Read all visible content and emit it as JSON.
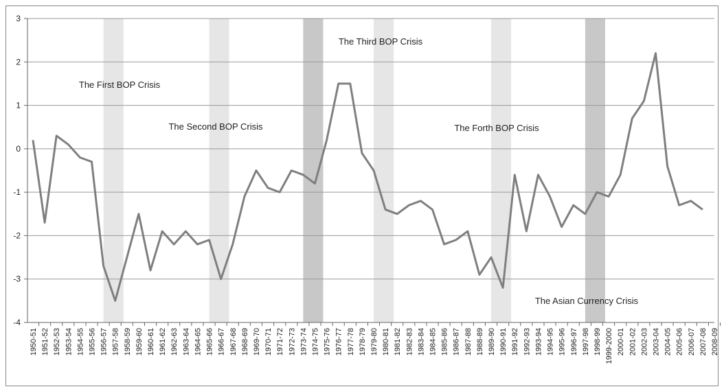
{
  "chart_data": {
    "type": "line",
    "categories": [
      "1950-51",
      "1951-52",
      "1952-53",
      "1953-54",
      "1954-55",
      "1955-56",
      "1956-57",
      "1957-58",
      "1958-59",
      "1959-60",
      "1960-61",
      "1961-62",
      "1962-63",
      "1963-64",
      "1964-65",
      "1965-66",
      "1966-67",
      "1967-68",
      "1968-69",
      "1969-70",
      "1970-71",
      "1971-72",
      "1972-73",
      "1973-74",
      "1974-75",
      "1975-76",
      "1976-77",
      "1977-78",
      "1978-79",
      "1979-80",
      "1980-81",
      "1981-82",
      "1982-83",
      "1983-84",
      "1984-85",
      "1985-86",
      "1986-87",
      "1987-88",
      "1988-89",
      "1989-90",
      "1990-91",
      "1991-92",
      "1992-93",
      "1993-94",
      "1994-95",
      "1995-96",
      "1996-97",
      "1997-98",
      "1998-99",
      "1999-2000",
      "2000-01",
      "2001-02",
      "2002-03",
      "2003-04",
      "2004-05",
      "2005-06",
      "2006-07",
      "2007-08",
      "2008-09"
    ],
    "values": [
      0.2,
      -1.7,
      0.3,
      0.1,
      -0.2,
      -0.3,
      -2.7,
      -3.5,
      -2.5,
      -1.5,
      -2.8,
      -1.9,
      -2.2,
      -1.9,
      -2.2,
      -2.1,
      -3.0,
      -2.2,
      -1.1,
      -0.5,
      -0.9,
      -1.0,
      -0.5,
      -0.6,
      -0.8,
      0.2,
      1.5,
      1.5,
      -0.1,
      -0.5,
      -1.4,
      -1.5,
      -1.3,
      -1.2,
      -1.4,
      -2.2,
      -2.1,
      -1.9,
      -2.9,
      -2.5,
      -3.2,
      -0.6,
      -1.9,
      -0.6,
      -1.1,
      -1.8,
      -1.3,
      -1.5,
      -1.0,
      -1.1,
      -0.6,
      0.7,
      1.1,
      2.2,
      -0.4,
      -1.3,
      -1.2,
      -1.4,
      null
    ],
    "color": "#7f7f7f",
    "ylim": [
      -4,
      3
    ],
    "yticks": [
      -4,
      -3,
      -2,
      -1,
      0,
      1,
      2,
      3
    ],
    "grid": true,
    "shaded_periods": [
      {
        "from": "1956-57",
        "to": "1957-58",
        "color": "#e6e6e6"
      },
      {
        "from": "1965-66",
        "to": "1966-67",
        "color": "#e6e6e6"
      },
      {
        "from": "1973-74",
        "to": "1974-75",
        "color": "#c8c8c8"
      },
      {
        "from": "1979-80",
        "to": "1980-81",
        "color": "#e6e6e6"
      },
      {
        "from": "1989-90",
        "to": "1990-91",
        "color": "#e6e6e6"
      },
      {
        "from": "1997-98",
        "to": "1998-99",
        "color": "#c8c8c8"
      }
    ],
    "annotations": [
      "The First BOP Crisis",
      "The Second BOP Crisis",
      "The Third BOP Crisis",
      "The Forth BOP Crisis",
      "The Asian Currency Crisis"
    ]
  }
}
